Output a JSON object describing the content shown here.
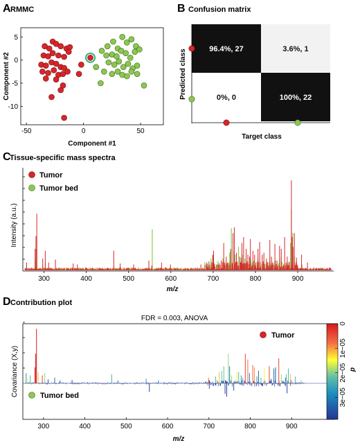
{
  "panels": {
    "a": {
      "letter": "A",
      "title": "RMMC"
    },
    "b": {
      "letter": "B",
      "title": "Confusion matrix"
    },
    "c": {
      "letter": "C",
      "title": "Tissue-specific mass spectra"
    },
    "d": {
      "letter": "D",
      "title": "Contribution plot"
    }
  },
  "colors": {
    "tumor": "#d7262b",
    "tumor_bed": "#8cc751",
    "highlight_ring": "#2bb673",
    "dark_cell": "#111111",
    "light_cell": "#f2f2f2"
  },
  "chart_data": [
    {
      "id": "a",
      "type": "scatter",
      "title": "RMMC",
      "xlabel": "Component #1",
      "ylabel": "Component #2",
      "xlim": [
        -55,
        70
      ],
      "ylim": [
        -14,
        7
      ],
      "xticks": [
        -50,
        0,
        50
      ],
      "yticks": [
        -10,
        -5,
        0,
        5
      ],
      "grid": false,
      "series": [
        {
          "name": "Tumor",
          "points": [
            [
              -34,
              3
            ],
            [
              -27,
              4
            ],
            [
              -30,
              2.5
            ],
            [
              -24,
              3.5
            ],
            [
              -20,
              3
            ],
            [
              -15,
              2.5
            ],
            [
              -12,
              2.8
            ],
            [
              -35,
              1
            ],
            [
              -31,
              0.8
            ],
            [
              -27,
              1.5
            ],
            [
              -22,
              1
            ],
            [
              -17,
              0.7
            ],
            [
              -13,
              1.8
            ],
            [
              -37,
              -1
            ],
            [
              -33,
              -1.2
            ],
            [
              -28,
              -0.5
            ],
            [
              -24,
              -0.8
            ],
            [
              -20,
              -1.5
            ],
            [
              -17,
              -1.7
            ],
            [
              -36,
              -2.5
            ],
            [
              -31,
              -2.8
            ],
            [
              -26,
              -2.2
            ],
            [
              -22,
              -3.2
            ],
            [
              -18,
              -3
            ],
            [
              -14,
              -2.5
            ],
            [
              -33,
              -4
            ],
            [
              -24,
              -4.2
            ],
            [
              -18,
              -5.5
            ],
            [
              -20,
              -6.5
            ],
            [
              -28,
              -8
            ],
            [
              -2,
              -1
            ],
            [
              -4,
              -3
            ],
            [
              -17,
              -12.5
            ]
          ]
        },
        {
          "name": "Tumor bed",
          "points": [
            [
              16,
              2
            ],
            [
              21,
              3
            ],
            [
              26,
              4
            ],
            [
              30,
              2.5
            ],
            [
              34,
              5
            ],
            [
              38,
              3.8
            ],
            [
              42,
              4.5
            ],
            [
              46,
              3
            ],
            [
              20,
              1
            ],
            [
              25,
              1.2
            ],
            [
              29,
              0.8
            ],
            [
              33,
              2
            ],
            [
              37,
              1.5
            ],
            [
              41,
              0.5
            ],
            [
              45,
              1.8
            ],
            [
              49,
              2.3
            ],
            [
              22,
              -0.5
            ],
            [
              27,
              -1
            ],
            [
              31,
              -0.3
            ],
            [
              35,
              -1.5
            ],
            [
              39,
              -0.8
            ],
            [
              43,
              -1.8
            ],
            [
              47,
              -1.2
            ],
            [
              11,
              -1.5
            ],
            [
              18,
              -2.5
            ],
            [
              25,
              -3
            ],
            [
              30,
              -2.5
            ],
            [
              34,
              -3.2
            ],
            [
              38,
              -3.5
            ],
            [
              42,
              -2.5
            ],
            [
              47,
              -3
            ],
            [
              15,
              -5
            ],
            [
              53,
              -5.5
            ]
          ]
        }
      ],
      "highlight_point": [
        6,
        0.5
      ]
    },
    {
      "id": "b",
      "type": "heatmap",
      "title": "Confusion matrix",
      "xlabel": "Target class",
      "ylabel": "Predicted class",
      "cells": [
        {
          "label": "96.4%, 27",
          "percent": 96.4,
          "count": 27
        },
        {
          "label": "3.6%, 1",
          "percent": 3.6,
          "count": 1
        },
        {
          "label": "0%, 0",
          "percent": 0,
          "count": 0
        },
        {
          "label": "100%, 22",
          "percent": 100,
          "count": 22
        }
      ]
    },
    {
      "id": "c",
      "type": "line",
      "title": "Tissue-specific mass spectra",
      "xlabel": "m/z",
      "ylabel": "Intensity (a.u.)",
      "xlim": [
        250,
        985
      ],
      "ylim": [
        0,
        1
      ],
      "xticks": [
        300,
        400,
        500,
        600,
        700,
        800,
        900
      ],
      "legend": "top-left",
      "series": [
        {
          "name": "Tumor",
          "peaks": [
            [
              259,
              0.08
            ],
            [
              279,
              0.22
            ],
            [
              281,
              0.35
            ],
            [
              283,
              0.58
            ],
            [
              297,
              0.12
            ],
            [
              303,
              0.2
            ],
            [
              311,
              0.08
            ],
            [
              327,
              0.11
            ],
            [
              369,
              0.07
            ],
            [
              379,
              0.06
            ],
            [
              465,
              0.2
            ],
            [
              480,
              0.07
            ],
            [
              512,
              0.06
            ],
            [
              548,
              0.1
            ],
            [
              555,
              0.05
            ],
            [
              578,
              0.08
            ],
            [
              599,
              0.06
            ],
            [
              671,
              0.06
            ],
            [
              686,
              0.07
            ],
            [
              699,
              0.16
            ],
            [
              701,
              0.2
            ],
            [
              719,
              0.1
            ],
            [
              725,
              0.28
            ],
            [
              731,
              0.14
            ],
            [
              742,
              0.22
            ],
            [
              747,
              0.38
            ],
            [
              750,
              0.44
            ],
            [
              755,
              0.18
            ],
            [
              763,
              0.14
            ],
            [
              768,
              0.28
            ],
            [
              772,
              0.34
            ],
            [
              778,
              0.22
            ],
            [
              782,
              0.16
            ],
            [
              786,
              0.14
            ],
            [
              788,
              0.32
            ],
            [
              794,
              0.2
            ],
            [
              798,
              0.16
            ],
            [
              806,
              0.22
            ],
            [
              810,
              0.29
            ],
            [
              816,
              0.16
            ],
            [
              820,
              0.18
            ],
            [
              826,
              0.12
            ],
            [
              834,
              0.31
            ],
            [
              838,
              0.14
            ],
            [
              846,
              0.27
            ],
            [
              851,
              0.1
            ],
            [
              857,
              0.25
            ],
            [
              861,
              0.22
            ],
            [
              869,
              0.34
            ],
            [
              875,
              0.14
            ],
            [
              885,
              0.92
            ],
            [
              887,
              0.34
            ],
            [
              889,
              0.24
            ],
            [
              892,
              0.38
            ],
            [
              897,
              0.13
            ],
            [
              909,
              0.16
            ],
            [
              923,
              0.08
            ]
          ]
        },
        {
          "name": "Tumor bed",
          "peaks": [
            [
              279,
              0.1
            ],
            [
              283,
              0.22
            ],
            [
              297,
              0.05
            ],
            [
              303,
              0.08
            ],
            [
              465,
              0.05
            ],
            [
              556,
              0.42
            ],
            [
              599,
              0.04
            ],
            [
              695,
              0.12
            ],
            [
              700,
              0.14
            ],
            [
              723,
              0.12
            ],
            [
              739,
              0.18
            ],
            [
              741,
              0.2
            ],
            [
              743,
              0.43
            ],
            [
              747,
              0.2
            ],
            [
              752,
              0.16
            ],
            [
              760,
              0.24
            ],
            [
              766,
              0.13
            ],
            [
              769,
              0.16
            ],
            [
              775,
              0.12
            ],
            [
              789,
              0.12
            ],
            [
              797,
              0.1
            ],
            [
              806,
              0.13
            ],
            [
              818,
              0.09
            ],
            [
              834,
              0.14
            ],
            [
              848,
              0.1
            ],
            [
              857,
              0.11
            ],
            [
              861,
              0.14
            ],
            [
              883,
              0.28
            ],
            [
              885,
              0.62
            ],
            [
              888,
              0.38
            ],
            [
              892,
              0.15
            ],
            [
              910,
              0.06
            ]
          ]
        }
      ]
    },
    {
      "id": "d",
      "type": "line",
      "title": "Contribution plot",
      "subtitle": "FDR = 0.003, ANOVA",
      "xlabel": "m/z",
      "ylabel": "Covariance (X,y)",
      "xlim": [
        250,
        985
      ],
      "ylim": [
        -1,
        1
      ],
      "xticks": [
        300,
        400,
        500,
        600,
        700,
        800,
        900
      ],
      "annotations": [
        "Tumor",
        "Tumor bed"
      ],
      "colorbar": {
        "label": "p",
        "range": [
          0,
          3.9e-05
        ],
        "ticks": [
          "0",
          "1e−05",
          "2e−05",
          "3e−05"
        ],
        "tick_values": [
          0,
          1e-05,
          2e-05,
          3e-05
        ]
      },
      "bars": [
        [
          258,
          0.18,
          0.7
        ],
        [
          262,
          0.1,
          0.4
        ],
        [
          268,
          0.14,
          0.6
        ],
        [
          279,
          0.28,
          0.05
        ],
        [
          281,
          0.52,
          0.02
        ],
        [
          283,
          0.96,
          0.0
        ],
        [
          287,
          0.2,
          0.3
        ],
        [
          297,
          0.14,
          0.1
        ],
        [
          303,
          0.18,
          0.5
        ],
        [
          311,
          0.07,
          0.9
        ],
        [
          327,
          0.1,
          0.8
        ],
        [
          340,
          0.05,
          0.9
        ],
        [
          369,
          0.06,
          0.9
        ],
        [
          465,
          0.16,
          0.6
        ],
        [
          480,
          0.05,
          0.8
        ],
        [
          548,
          0.08,
          0.7
        ],
        [
          556,
          -0.26,
          0.95
        ],
        [
          578,
          0.05,
          0.8
        ],
        [
          699,
          0.1,
          0.2
        ],
        [
          701,
          -0.16,
          0.95
        ],
        [
          716,
          0.12,
          0.6
        ],
        [
          719,
          0.06,
          0.5
        ],
        [
          725,
          0.2,
          0.3
        ],
        [
          731,
          0.22,
          0.55
        ],
        [
          736,
          0.3,
          0.55
        ],
        [
          739,
          -0.32,
          0.95
        ],
        [
          743,
          -0.4,
          0.99
        ],
        [
          747,
          0.52,
          0.5
        ],
        [
          750,
          0.3,
          0.8
        ],
        [
          755,
          0.14,
          0.5
        ],
        [
          760,
          -0.22,
          0.9
        ],
        [
          768,
          0.2,
          0.4
        ],
        [
          772,
          0.2,
          0.6
        ],
        [
          778,
          0.14,
          0.7
        ],
        [
          782,
          0.1,
          0.6
        ],
        [
          788,
          0.52,
          0.1
        ],
        [
          794,
          0.42,
          0.2
        ],
        [
          798,
          0.18,
          0.8
        ],
        [
          806,
          0.32,
          0.15
        ],
        [
          810,
          0.28,
          0.25
        ],
        [
          816,
          0.12,
          0.7
        ],
        [
          820,
          0.22,
          0.85
        ],
        [
          826,
          0.1,
          0.6
        ],
        [
          834,
          0.26,
          0.4
        ],
        [
          846,
          0.3,
          0.1
        ],
        [
          851,
          0.08,
          0.8
        ],
        [
          857,
          0.26,
          0.8
        ],
        [
          861,
          0.28,
          0.9
        ],
        [
          869,
          0.44,
          0.1
        ],
        [
          875,
          0.16,
          0.5
        ],
        [
          885,
          0.1,
          0.8
        ],
        [
          887,
          0.16,
          0.6
        ],
        [
          889,
          -0.3,
          0.95
        ],
        [
          892,
          0.26,
          0.6
        ],
        [
          897,
          0.16,
          0.3
        ],
        [
          909,
          0.12,
          0.6
        ],
        [
          923,
          0.06,
          0.5
        ]
      ]
    }
  ]
}
